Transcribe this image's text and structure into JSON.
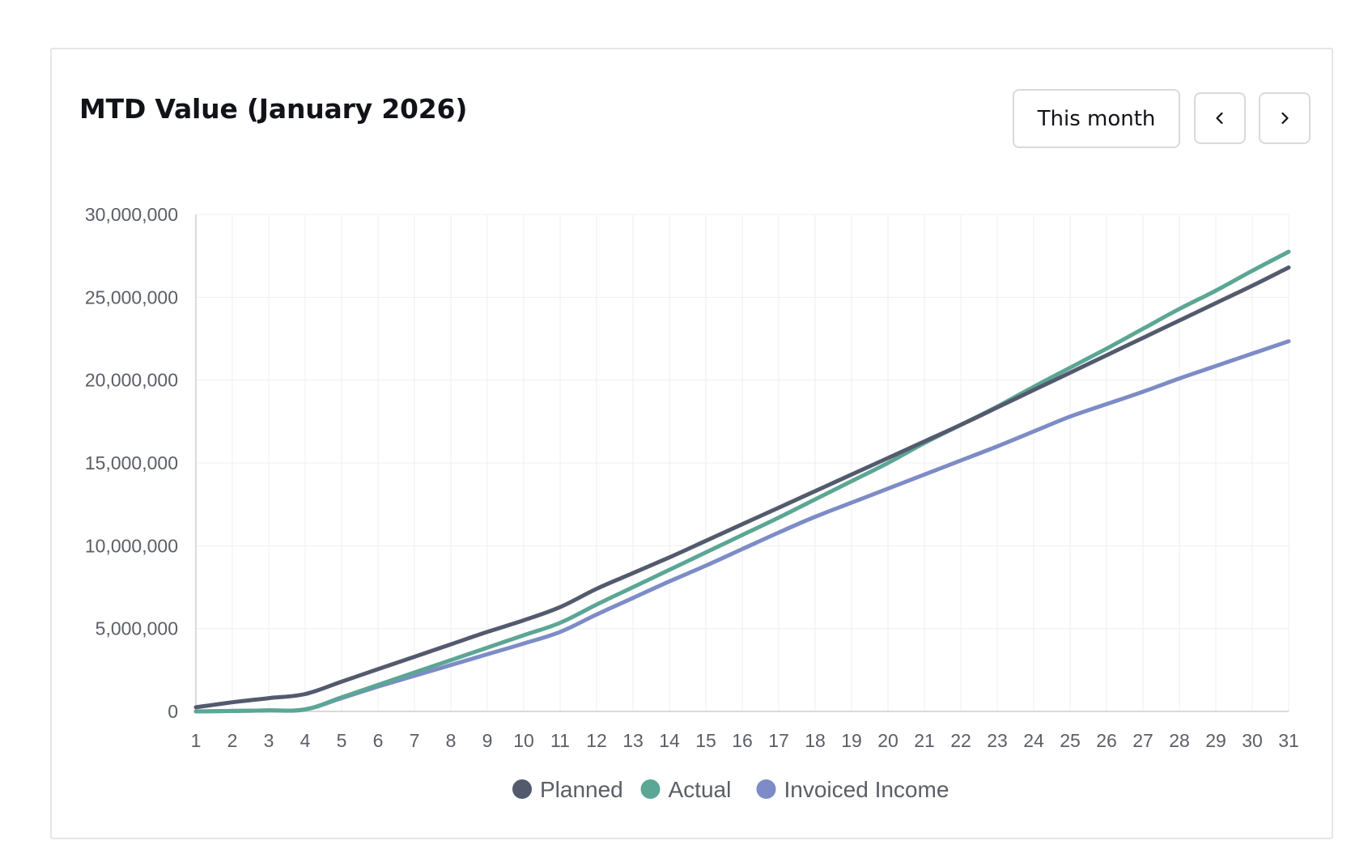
{
  "card": {
    "title": "MTD Value (January 2026)"
  },
  "controls": {
    "period_label": "This month",
    "prev_icon": "chevron-left-icon",
    "next_icon": "chevron-right-icon"
  },
  "chart_data": {
    "type": "line",
    "title": "MTD Value (January 2026)",
    "xlabel": "",
    "ylabel": "",
    "x": [
      1,
      2,
      3,
      4,
      5,
      6,
      7,
      8,
      9,
      10,
      11,
      12,
      13,
      14,
      15,
      16,
      17,
      18,
      19,
      20,
      21,
      22,
      23,
      24,
      25,
      26,
      27,
      28,
      29,
      30,
      31
    ],
    "y_ticks": [
      "0",
      "5,000,000",
      "10,000,000",
      "15,000,000",
      "20,000,000",
      "25,000,000",
      "30,000,000"
    ],
    "ylim": [
      0,
      30000000
    ],
    "xlim": [
      1,
      31
    ],
    "grid": true,
    "legend_position": "bottom",
    "series": [
      {
        "name": "Planned",
        "color": "#545a6e",
        "values": [
          250000,
          550000,
          800000,
          1050000,
          1800000,
          2550000,
          3300000,
          4050000,
          4800000,
          5500000,
          6300000,
          7400000,
          8350000,
          9300000,
          10300000,
          11300000,
          12300000,
          13300000,
          14300000,
          15300000,
          16300000,
          17300000,
          18350000,
          19400000,
          20450000,
          21500000,
          22550000,
          23600000,
          24650000,
          25700000,
          26800000
        ]
      },
      {
        "name": "Actual",
        "color": "#5ba694",
        "values": [
          0,
          30000,
          60000,
          120000,
          850000,
          1600000,
          2350000,
          3100000,
          3850000,
          4600000,
          5350000,
          6450000,
          7500000,
          8550000,
          9600000,
          10650000,
          11700000,
          12800000,
          13900000,
          15000000,
          16200000,
          17300000,
          18400000,
          19600000,
          20750000,
          21900000,
          23100000,
          24300000,
          25400000,
          26600000,
          27750000
        ]
      },
      {
        "name": "Invoiced Income",
        "color": "#7d8cc6",
        "values": [
          0,
          30000,
          60000,
          120000,
          800000,
          1500000,
          2150000,
          2800000,
          3450000,
          4100000,
          4800000,
          5850000,
          6850000,
          7850000,
          8800000,
          9800000,
          10800000,
          11750000,
          12600000,
          13450000,
          14300000,
          15150000,
          16000000,
          16900000,
          17800000,
          18550000,
          19300000,
          20100000,
          20850000,
          21600000,
          22350000
        ]
      }
    ]
  }
}
